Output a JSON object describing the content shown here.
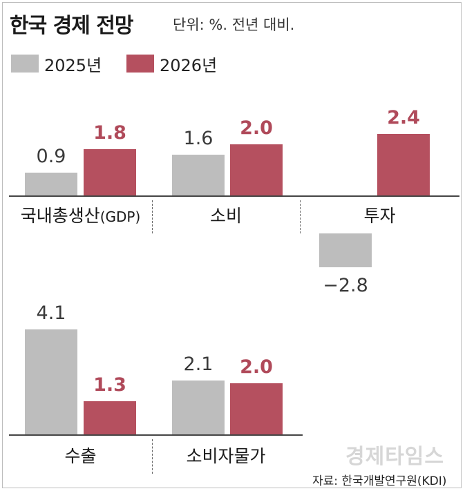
{
  "title": "한국 경제 전망",
  "unit_note": "단위: %. 전년 대비.",
  "source": "자료: 한국개발연구원(KDI)",
  "watermark": "경제타임스",
  "colors": {
    "y2025": "#bdbdbd",
    "y2026": "#b5505f"
  },
  "chart_data": {
    "type": "bar",
    "legend": [
      "2025년",
      "2026년"
    ],
    "legend_placement": "top-left",
    "grid": false,
    "panels": [
      {
        "categories": [
          {
            "name": "국내총생산",
            "suffix": "(GDP)"
          },
          {
            "name": "소비",
            "suffix": ""
          },
          {
            "name": "투자",
            "suffix": ""
          }
        ],
        "series": [
          {
            "name": "2025년",
            "values": [
              0.9,
              1.6,
              -2.8
            ],
            "labels": [
              "0.9",
              "1.6",
              "−2.8"
            ]
          },
          {
            "name": "2026년",
            "values": [
              1.8,
              2.0,
              2.4
            ],
            "labels": [
              "1.8",
              "2.0",
              "2.4"
            ]
          }
        ]
      },
      {
        "categories": [
          {
            "name": "수출",
            "suffix": ""
          },
          {
            "name": "소비자물가",
            "suffix": ""
          }
        ],
        "series": [
          {
            "name": "2025년",
            "values": [
              4.1,
              2.1
            ],
            "labels": [
              "4.1",
              "2.1"
            ]
          },
          {
            "name": "2026년",
            "values": [
              1.3,
              2.0
            ],
            "labels": [
              "1.3",
              "2.0"
            ]
          }
        ]
      }
    ]
  }
}
